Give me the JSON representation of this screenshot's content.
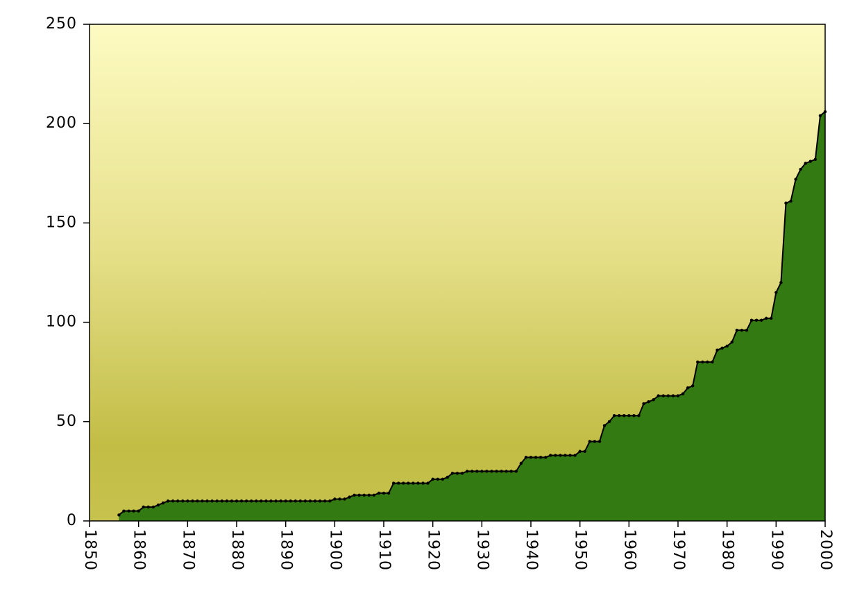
{
  "chart_data": {
    "type": "area",
    "x": [
      1856,
      1857,
      1858,
      1859,
      1860,
      1861,
      1862,
      1863,
      1864,
      1865,
      1866,
      1867,
      1868,
      1869,
      1870,
      1871,
      1872,
      1873,
      1874,
      1875,
      1876,
      1877,
      1878,
      1879,
      1880,
      1881,
      1882,
      1883,
      1884,
      1885,
      1886,
      1887,
      1888,
      1889,
      1890,
      1891,
      1892,
      1893,
      1894,
      1895,
      1896,
      1897,
      1898,
      1899,
      1900,
      1901,
      1902,
      1903,
      1904,
      1905,
      1906,
      1907,
      1908,
      1909,
      1910,
      1911,
      1912,
      1913,
      1914,
      1915,
      1916,
      1917,
      1918,
      1919,
      1920,
      1921,
      1922,
      1923,
      1924,
      1925,
      1926,
      1927,
      1928,
      1929,
      1930,
      1931,
      1932,
      1933,
      1934,
      1935,
      1936,
      1937,
      1938,
      1939,
      1940,
      1941,
      1942,
      1943,
      1944,
      1945,
      1946,
      1947,
      1948,
      1949,
      1950,
      1951,
      1952,
      1953,
      1954,
      1955,
      1956,
      1957,
      1958,
      1959,
      1960,
      1961,
      1962,
      1963,
      1964,
      1965,
      1966,
      1967,
      1968,
      1969,
      1970,
      1971,
      1972,
      1973,
      1974,
      1975,
      1976,
      1977,
      1978,
      1979,
      1980,
      1981,
      1982,
      1983,
      1984,
      1985,
      1986,
      1987,
      1988,
      1989,
      1990,
      1991,
      1992,
      1993,
      1994,
      1995,
      1996,
      1997,
      1998,
      1999,
      2000
    ],
    "values": [
      3,
      5,
      5,
      5,
      5,
      7,
      7,
      7,
      8,
      9,
      10,
      10,
      10,
      10,
      10,
      10,
      10,
      10,
      10,
      10,
      10,
      10,
      10,
      10,
      10,
      10,
      10,
      10,
      10,
      10,
      10,
      10,
      10,
      10,
      10,
      10,
      10,
      10,
      10,
      10,
      10,
      10,
      10,
      10,
      11,
      11,
      11,
      12,
      13,
      13,
      13,
      13,
      13,
      14,
      14,
      14,
      19,
      19,
      19,
      19,
      19,
      19,
      19,
      19,
      21,
      21,
      21,
      22,
      24,
      24,
      24,
      25,
      25,
      25,
      25,
      25,
      25,
      25,
      25,
      25,
      25,
      25,
      29,
      32,
      32,
      32,
      32,
      32,
      33,
      33,
      33,
      33,
      33,
      33,
      35,
      35,
      40,
      40,
      40,
      48,
      50,
      53,
      53,
      53,
      53,
      53,
      53,
      59,
      60,
      61,
      63,
      63,
      63,
      63,
      63,
      64,
      67,
      68,
      80,
      80,
      80,
      80,
      86,
      87,
      88,
      90,
      96,
      96,
      96,
      101,
      101,
      101,
      102,
      102,
      115,
      120,
      160,
      161,
      172,
      177,
      180,
      181,
      182,
      204,
      206
    ],
    "color": "#337a12",
    "line_color": "#000000",
    "xlim": [
      1850,
      2000
    ],
    "xticks": [
      1850,
      1860,
      1870,
      1880,
      1890,
      1900,
      1910,
      1920,
      1930,
      1940,
      1950,
      1960,
      1970,
      1980,
      1990,
      2000
    ],
    "ylim": [
      0,
      250
    ],
    "yticks": [
      0,
      50,
      100,
      150,
      200,
      250
    ]
  }
}
